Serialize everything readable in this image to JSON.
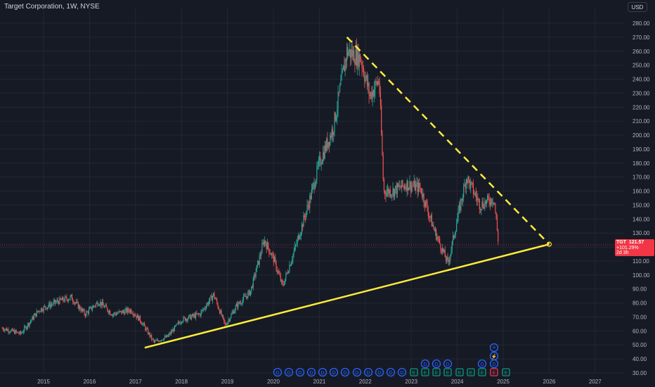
{
  "header": {
    "title": "Target Corporation, 1W, NYSE",
    "currency": "USD"
  },
  "price_label": {
    "symbol": "TGT",
    "price": "121.57",
    "change": "+101.29%",
    "countdown": "2d 3h"
  },
  "colors": {
    "background": "#161a25",
    "up": "#26a69a",
    "down": "#ef5350",
    "trendline": "#ffeb3b",
    "label": "#f23645",
    "event_blue": "#2962ff",
    "event_green": "#089981"
  },
  "markers": {
    "dividend": "D",
    "earnings": "E",
    "split_icon": "lightning-icon",
    "plus_icon": "plus-icon",
    "row": [
      "D",
      "D",
      "D",
      "D",
      "D",
      "D",
      "D",
      "D",
      "D",
      "D",
      "D",
      "D",
      "E",
      "E",
      "E",
      "E",
      "E",
      "E",
      "E",
      "E",
      "E",
      "E",
      "E"
    ]
  },
  "chart_data": {
    "type": "candlestick",
    "title": "Target Corporation, 1W, NYSE",
    "x": [
      "2015",
      "2016",
      "2017",
      "2018",
      "2019",
      "2020",
      "2021",
      "2022",
      "2023",
      "2024",
      "2025",
      "2026",
      "2027"
    ],
    "y_ticks": [
      30,
      40,
      50,
      60,
      70,
      80,
      90,
      100,
      110,
      120,
      130,
      140,
      150,
      160,
      170,
      180,
      190,
      200,
      210,
      220,
      230,
      240,
      250,
      260,
      270,
      280
    ],
    "ylim": [
      25,
      285
    ],
    "grid": true,
    "series": [
      {
        "values": [
          {
            "date": 2014.1,
            "price": 62
          },
          {
            "date": 2014.5,
            "price": 58
          },
          {
            "date": 2014.9,
            "price": 75
          },
          {
            "date": 2015.3,
            "price": 81
          },
          {
            "date": 2015.6,
            "price": 84
          },
          {
            "date": 2015.9,
            "price": 72
          },
          {
            "date": 2016.2,
            "price": 81
          },
          {
            "date": 2016.5,
            "price": 72
          },
          {
            "date": 2016.9,
            "price": 75
          },
          {
            "date": 2017.1,
            "price": 68
          },
          {
            "date": 2017.4,
            "price": 52
          },
          {
            "date": 2017.7,
            "price": 56
          },
          {
            "date": 2018.0,
            "price": 68
          },
          {
            "date": 2018.4,
            "price": 72
          },
          {
            "date": 2018.7,
            "price": 86
          },
          {
            "date": 2018.95,
            "price": 64
          },
          {
            "date": 2019.2,
            "price": 78
          },
          {
            "date": 2019.5,
            "price": 88
          },
          {
            "date": 2019.8,
            "price": 125
          },
          {
            "date": 2020.0,
            "price": 112
          },
          {
            "date": 2020.2,
            "price": 92
          },
          {
            "date": 2020.5,
            "price": 122
          },
          {
            "date": 2020.8,
            "price": 155
          },
          {
            "date": 2021.0,
            "price": 180
          },
          {
            "date": 2021.3,
            "price": 205
          },
          {
            "date": 2021.6,
            "price": 260
          },
          {
            "date": 2021.9,
            "price": 255
          },
          {
            "date": 2022.1,
            "price": 228
          },
          {
            "date": 2022.3,
            "price": 240
          },
          {
            "date": 2022.4,
            "price": 160
          },
          {
            "date": 2022.6,
            "price": 160
          },
          {
            "date": 2022.9,
            "price": 165
          },
          {
            "date": 2023.2,
            "price": 162
          },
          {
            "date": 2023.5,
            "price": 132
          },
          {
            "date": 2023.8,
            "price": 108
          },
          {
            "date": 2024.0,
            "price": 140
          },
          {
            "date": 2024.2,
            "price": 170
          },
          {
            "date": 2024.5,
            "price": 150
          },
          {
            "date": 2024.8,
            "price": 155
          },
          {
            "date": 2024.9,
            "price": 121.57
          }
        ]
      }
    ],
    "annotations": [
      {
        "type": "trendline",
        "style": "solid",
        "from": {
          "date": 2017.2,
          "price": 48
        },
        "to": {
          "date": 2026.0,
          "price": 122
        }
      },
      {
        "type": "trendline",
        "style": "dashed",
        "from": {
          "date": 2021.6,
          "price": 270
        },
        "to": {
          "date": 2026.0,
          "price": 122
        }
      }
    ]
  }
}
